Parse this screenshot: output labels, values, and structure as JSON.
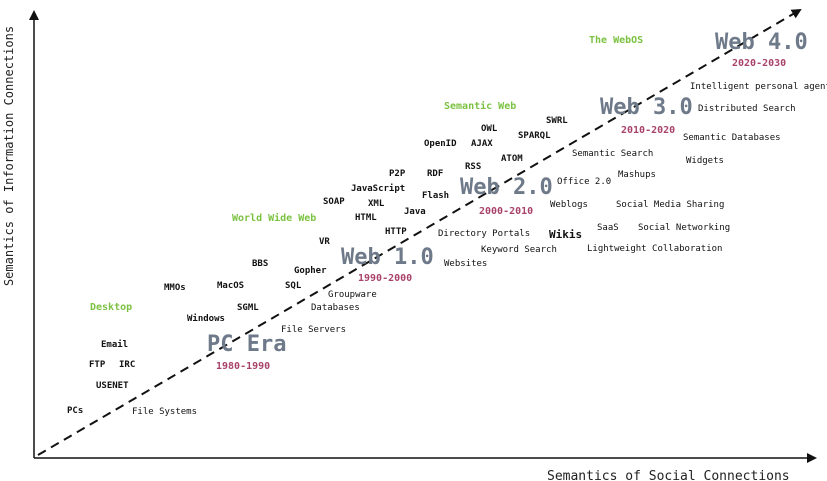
{
  "axes": {
    "y_label": "Semantics of Information Connections",
    "x_label": "Semantics of Social Connections"
  },
  "eras": [
    {
      "name": "PC Era",
      "years": "1980-1990"
    },
    {
      "name": "Web 1.0",
      "years": "1990-2000"
    },
    {
      "name": "Web 2.0",
      "years": "2000-2010"
    },
    {
      "name": "Web 3.0",
      "years": "2010-2020"
    },
    {
      "name": "Web 4.0",
      "years": "2020-2030"
    }
  ],
  "categories": [
    "Desktop",
    "World Wide Web",
    "Semantic Web",
    "The WebOS"
  ],
  "technologies": {
    "pcs": "PCs",
    "file_systems": "File Systems",
    "usenet": "USENET",
    "ftp": "FTP",
    "irc": "IRC",
    "email": "Email",
    "windows": "Windows",
    "mmos": "MMOs",
    "sgml": "SGML",
    "macos": "MacOS",
    "file_servers": "File Servers",
    "bbs": "BBS",
    "sql": "SQL",
    "gopher": "Gopher",
    "groupware": "Groupware",
    "databases": "Databases",
    "vr": "VR",
    "websites": "Websites",
    "keyword_search": "Keyword Search",
    "directory_portals": "Directory Portals",
    "http": "HTTP",
    "html": "HTML",
    "xml": "XML",
    "soap": "SOAP",
    "javascript": "JavaScript",
    "java": "Java",
    "flash": "Flash",
    "p2p": "P2P",
    "rdf": "RDF",
    "openid": "OpenID",
    "rss": "RSS",
    "ajax": "AJAX",
    "owl": "OWL",
    "atom": "ATOM",
    "sparql": "SPARQL",
    "swrl": "SWRL",
    "wikis": "Wikis",
    "weblogs": "Weblogs",
    "saas": "SaaS",
    "lightweight_collaboration": "Lightweight Collaboration",
    "social_networking": "Social Networking",
    "social_media_sharing": "Social Media Sharing",
    "office_2_0": "Office 2.0",
    "mashups": "Mashups",
    "semantic_search": "Semantic Search",
    "widgets": "Widgets",
    "semantic_databases": "Semantic Databases",
    "distributed_search": "Distributed Search",
    "intelligent_personal_agents": "Intelligent personal agents"
  }
}
